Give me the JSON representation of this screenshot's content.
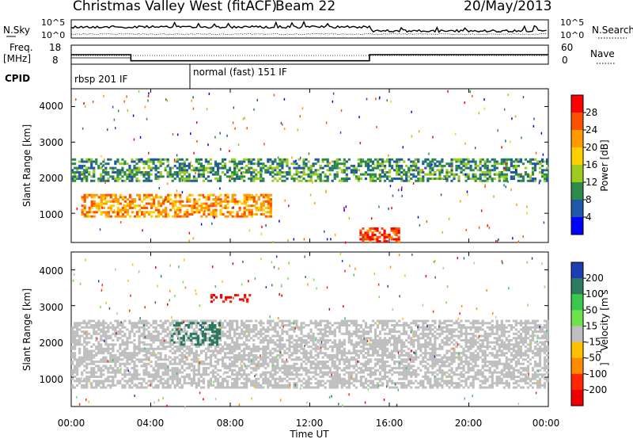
{
  "header": {
    "site": "Christmas Valley West (fitACF)",
    "beam": "Beam 22",
    "date": "20/May/2013"
  },
  "nsky_panel": {
    "left_label": "N.Sky",
    "right_label": "N.Search",
    "left_ticks": [
      "10^5",
      "10^0"
    ],
    "right_ticks": [
      "10^5",
      "10^0"
    ]
  },
  "freq_panel": {
    "left_label": "Freq.",
    "left_unit": "[MHz]",
    "right_label": "Nave",
    "left_ticks": [
      "18",
      "8"
    ],
    "right_ticks": [
      "60",
      "0"
    ]
  },
  "cpid": {
    "label": "CPID",
    "segments": [
      {
        "name": "rbsp 201 IF",
        "start_hour": 0
      },
      {
        "name": "normal (fast) 151 IF",
        "start_hour": 6
      }
    ]
  },
  "power_panel": {
    "ylabel": "Slant Range [km]",
    "colorbar_label": "Power [dB]",
    "colorbar_ticks": [
      "28",
      "24",
      "20",
      "16",
      "12",
      "8",
      "4"
    ],
    "colorbar_colors": [
      "#ff0000",
      "#ff5000",
      "#ff9a00",
      "#ffd000",
      "#9ccc20",
      "#2c8b4b",
      "#1f58a8",
      "#0000ff"
    ]
  },
  "velocity_panel": {
    "ylabel": "Slant Range [km]",
    "colorbar_label": "Velocity [m s",
    "colorbar_sup": "-1",
    "colorbar_ticks": [
      "200",
      "100",
      "50",
      "15",
      "-15",
      "-50",
      "-100",
      "-200"
    ],
    "colorbar_colors": [
      "#1e3cb4",
      "#2c7b5e",
      "#39c84b",
      "#6ee24a",
      "#bfbfbf",
      "#ffc000",
      "#ff8c00",
      "#ff2800",
      "#ee0000"
    ]
  },
  "chart_data": {
    "type": "heatmap",
    "xlabel": "Time UT",
    "x_ticks": [
      "00:00",
      "04:00",
      "08:00",
      "12:00",
      "16:00",
      "20:00",
      "00:00"
    ],
    "x_range_hours": [
      0,
      24
    ],
    "y_ticks": [
      "4000",
      "3000",
      "2000",
      "1000"
    ],
    "y_range_km": [
      180,
      4500
    ],
    "frequency_steps_mhz": [
      {
        "from_hour": 0,
        "to_hour": 3,
        "value": 13
      },
      {
        "from_hour": 3,
        "to_hour": 15,
        "value": 9.8
      },
      {
        "from_hour": 15,
        "to_hour": 24,
        "value": 13
      }
    ],
    "power_features": [
      {
        "name": "upper band",
        "from_hour": 0,
        "to_hour": 24,
        "range_km": [
          1900,
          2500
        ],
        "power_db": 10
      },
      {
        "name": "strong echo",
        "from_hour": 0.5,
        "to_hour": 10,
        "range_km": [
          900,
          1500
        ],
        "power_db": 22
      },
      {
        "name": "near range",
        "from_hour": 14.5,
        "to_hour": 16.5,
        "range_km": [
          200,
          600
        ],
        "power_db": 28
      }
    ],
    "velocity_features": [
      {
        "name": "ground scatter",
        "from_hour": 0,
        "to_hour": 24,
        "range_km": [
          700,
          2600
        ],
        "velocity": 0
      },
      {
        "name": "positive patch",
        "from_hour": 5,
        "to_hour": 7.5,
        "range_km": [
          1900,
          2500
        ],
        "velocity": 150
      },
      {
        "name": "negative patch",
        "from_hour": 7,
        "to_hour": 9,
        "range_km": [
          3100,
          3300
        ],
        "velocity": -200
      }
    ]
  }
}
